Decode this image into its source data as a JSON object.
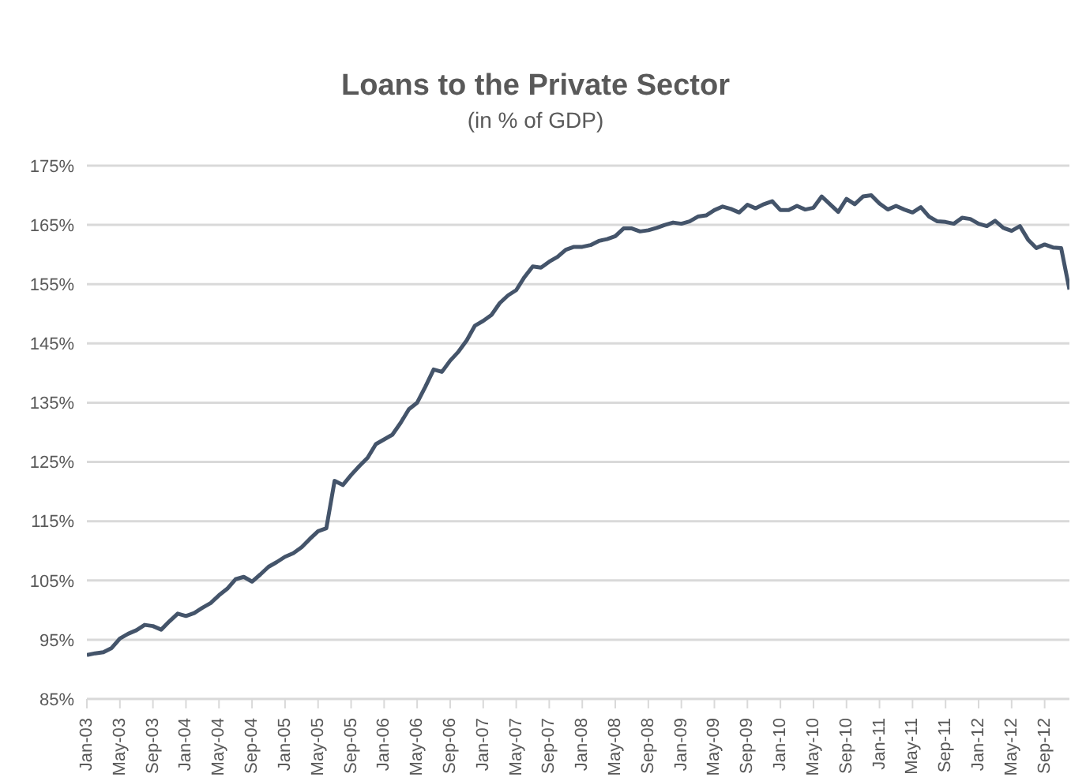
{
  "chart_data": {
    "type": "line",
    "title": "Loans to the Private Sector",
    "subtitle": "(in % of GDP)",
    "categories": [
      "Jan-03",
      null,
      null,
      null,
      "May-03",
      null,
      null,
      null,
      "Sep-03",
      null,
      null,
      null,
      "Jan-04",
      null,
      null,
      null,
      "May-04",
      null,
      null,
      null,
      "Sep-04",
      null,
      null,
      null,
      "Jan-05",
      null,
      null,
      null,
      "May-05",
      null,
      null,
      null,
      "Sep-05",
      null,
      null,
      null,
      "Jan-06",
      null,
      null,
      null,
      "May-06",
      null,
      null,
      null,
      "Sep-06",
      null,
      null,
      null,
      "Jan-07",
      null,
      null,
      null,
      "May-07",
      null,
      null,
      null,
      "Sep-07",
      null,
      null,
      null,
      "Jan-08",
      null,
      null,
      null,
      "May-08",
      null,
      null,
      null,
      "Sep-08",
      null,
      null,
      null,
      "Jan-09",
      null,
      null,
      null,
      "May-09",
      null,
      null,
      null,
      "Sep-09",
      null,
      null,
      null,
      "Jan-10",
      null,
      null,
      null,
      "May-10",
      null,
      null,
      null,
      "Sep-10",
      null,
      null,
      null,
      "Jan-11",
      null,
      null,
      null,
      "May-11",
      null,
      null,
      null,
      "Sep-11",
      null,
      null,
      null,
      "Jan-12",
      null,
      null,
      null,
      "May-12",
      null,
      null,
      null,
      "Sep-12",
      null,
      null,
      null
    ],
    "series": [
      {
        "color": "#44546a",
        "values": [
          92.4,
          92.7,
          92.9,
          93.6,
          95.2,
          96.0,
          96.6,
          97.5,
          97.3,
          96.7,
          98.1,
          99.4,
          99.0,
          99.5,
          100.4,
          101.2,
          102.5,
          103.6,
          105.2,
          105.6,
          104.8,
          106.0,
          107.3,
          108.1,
          109.0,
          109.6,
          110.6,
          112.0,
          113.3,
          113.8,
          121.8,
          121.1,
          122.8,
          124.3,
          125.7,
          128.0,
          128.8,
          129.6,
          131.6,
          133.9,
          135.0,
          137.7,
          140.6,
          140.2,
          142.1,
          143.6,
          145.5,
          148.0,
          148.8,
          149.8,
          151.8,
          153.1,
          154.0,
          156.2,
          158.0,
          157.8,
          158.8,
          159.6,
          160.8,
          161.3,
          161.3,
          161.6,
          162.3,
          162.6,
          163.1,
          164.4,
          164.4,
          163.9,
          164.1,
          164.5,
          165.0,
          165.4,
          165.2,
          165.6,
          166.4,
          166.6,
          167.5,
          168.1,
          167.7,
          167.1,
          168.4,
          167.8,
          168.5,
          169.0,
          167.5,
          167.5,
          168.2,
          167.6,
          167.9,
          169.8,
          168.5,
          167.2,
          169.4,
          168.5,
          169.8,
          170.0,
          168.6,
          167.6,
          168.2,
          167.6,
          167.1,
          168.0,
          166.4,
          165.6,
          165.5,
          165.2,
          166.2,
          166.0,
          165.2,
          164.8,
          165.7,
          164.5,
          164.0,
          164.8,
          162.5,
          161.1,
          161.7,
          161.2,
          161.1,
          154.1
        ]
      }
    ],
    "ylim": [
      85,
      175
    ],
    "yticks": [
      {
        "value": 85,
        "label": "85%"
      },
      {
        "value": 95,
        "label": "95%"
      },
      {
        "value": 105,
        "label": "105%"
      },
      {
        "value": 115,
        "label": "115%"
      },
      {
        "value": 125,
        "label": "125%"
      },
      {
        "value": 135,
        "label": "135%"
      },
      {
        "value": 145,
        "label": "145%"
      },
      {
        "value": 155,
        "label": "155%"
      },
      {
        "value": 165,
        "label": "165%"
      },
      {
        "value": 175,
        "label": "175%"
      }
    ],
    "grid": "y",
    "legend": false,
    "marker": "none",
    "line_style": "solid"
  }
}
